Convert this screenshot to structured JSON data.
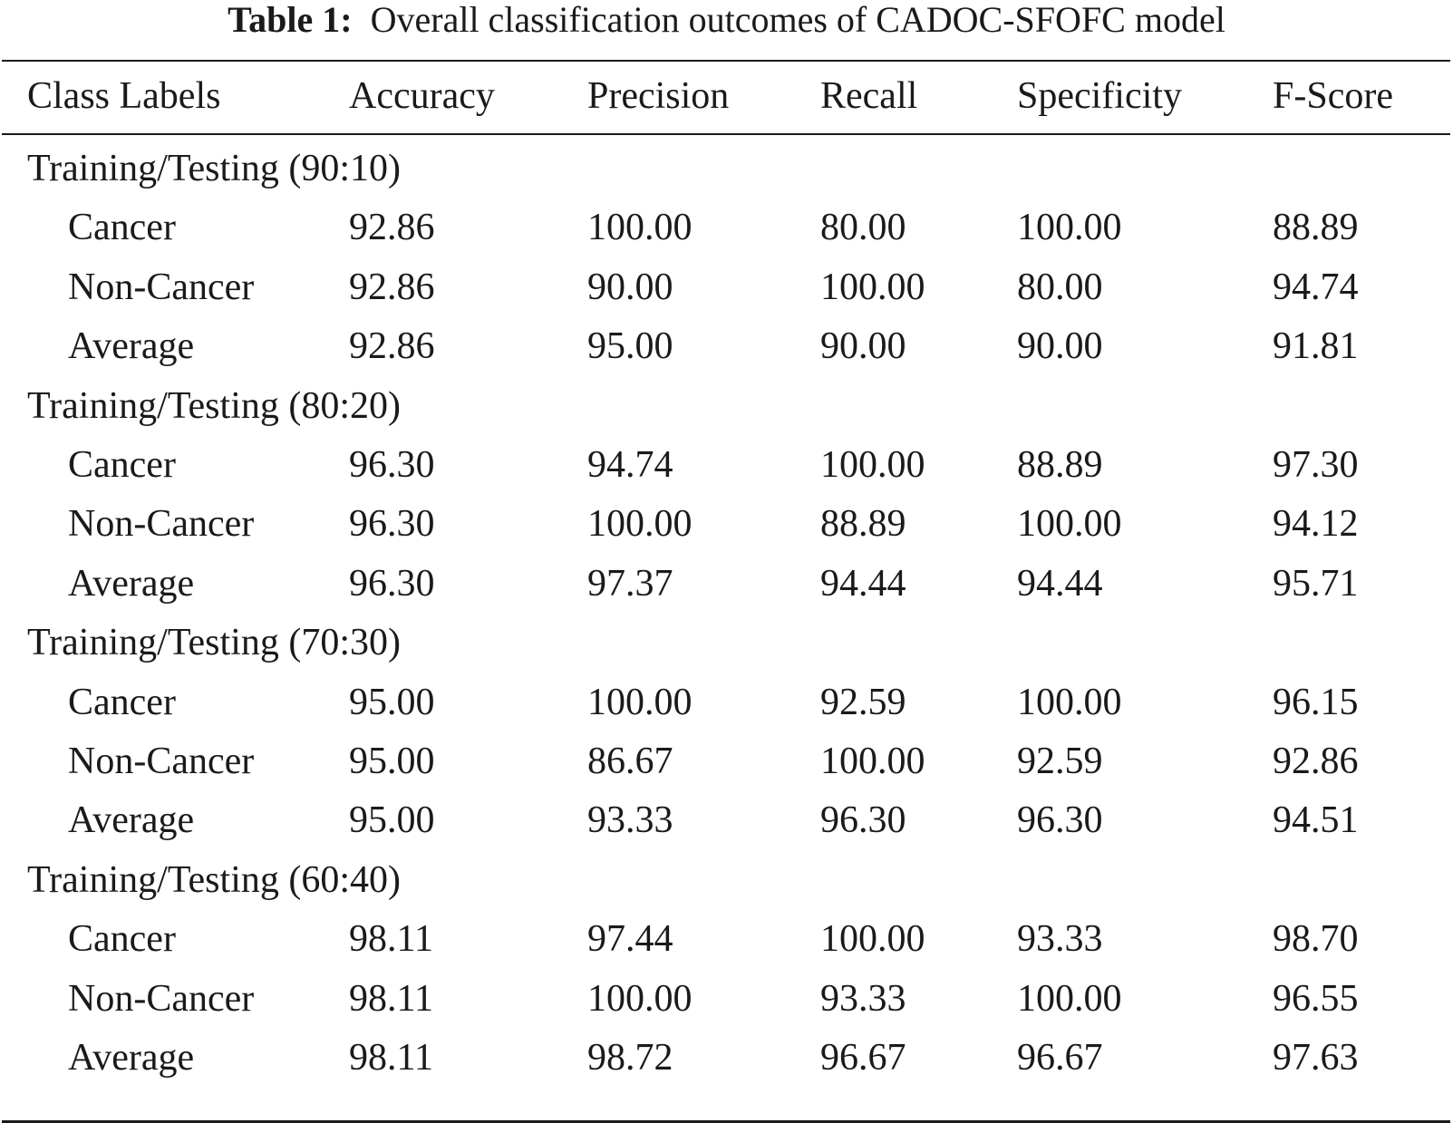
{
  "caption": {
    "label": "Table 1:",
    "text": "Overall classification outcomes of CADOC-SFOFC model"
  },
  "columns": [
    "Class Labels",
    "Accuracy",
    "Precision",
    "Recall",
    "Specificity",
    "F-Score"
  ],
  "groups": [
    {
      "label": "Training/Testing (90:10)",
      "rows": [
        [
          "Cancer",
          "92.86",
          "100.00",
          "80.00",
          "100.00",
          "88.89"
        ],
        [
          "Non-Cancer",
          "92.86",
          "90.00",
          "100.00",
          "80.00",
          "94.74"
        ],
        [
          "Average",
          "92.86",
          "95.00",
          "90.00",
          "90.00",
          "91.81"
        ]
      ]
    },
    {
      "label": "Training/Testing (80:20)",
      "rows": [
        [
          "Cancer",
          "96.30",
          "94.74",
          "100.00",
          "88.89",
          "97.30"
        ],
        [
          "Non-Cancer",
          "96.30",
          "100.00",
          "88.89",
          "100.00",
          "94.12"
        ],
        [
          "Average",
          "96.30",
          "97.37",
          "94.44",
          "94.44",
          "95.71"
        ]
      ]
    },
    {
      "label": "Training/Testing (70:30)",
      "rows": [
        [
          "Cancer",
          "95.00",
          "100.00",
          "92.59",
          "100.00",
          "96.15"
        ],
        [
          "Non-Cancer",
          "95.00",
          "86.67",
          "100.00",
          "92.59",
          "92.86"
        ],
        [
          "Average",
          "95.00",
          "93.33",
          "96.30",
          "96.30",
          "94.51"
        ]
      ]
    },
    {
      "label": "Training/Testing (60:40)",
      "rows": [
        [
          "Cancer",
          "98.11",
          "97.44",
          "100.00",
          "93.33",
          "98.70"
        ],
        [
          "Non-Cancer",
          "98.11",
          "100.00",
          "93.33",
          "100.00",
          "96.55"
        ],
        [
          "Average",
          "98.11",
          "98.72",
          "96.67",
          "96.67",
          "97.63"
        ]
      ]
    }
  ]
}
